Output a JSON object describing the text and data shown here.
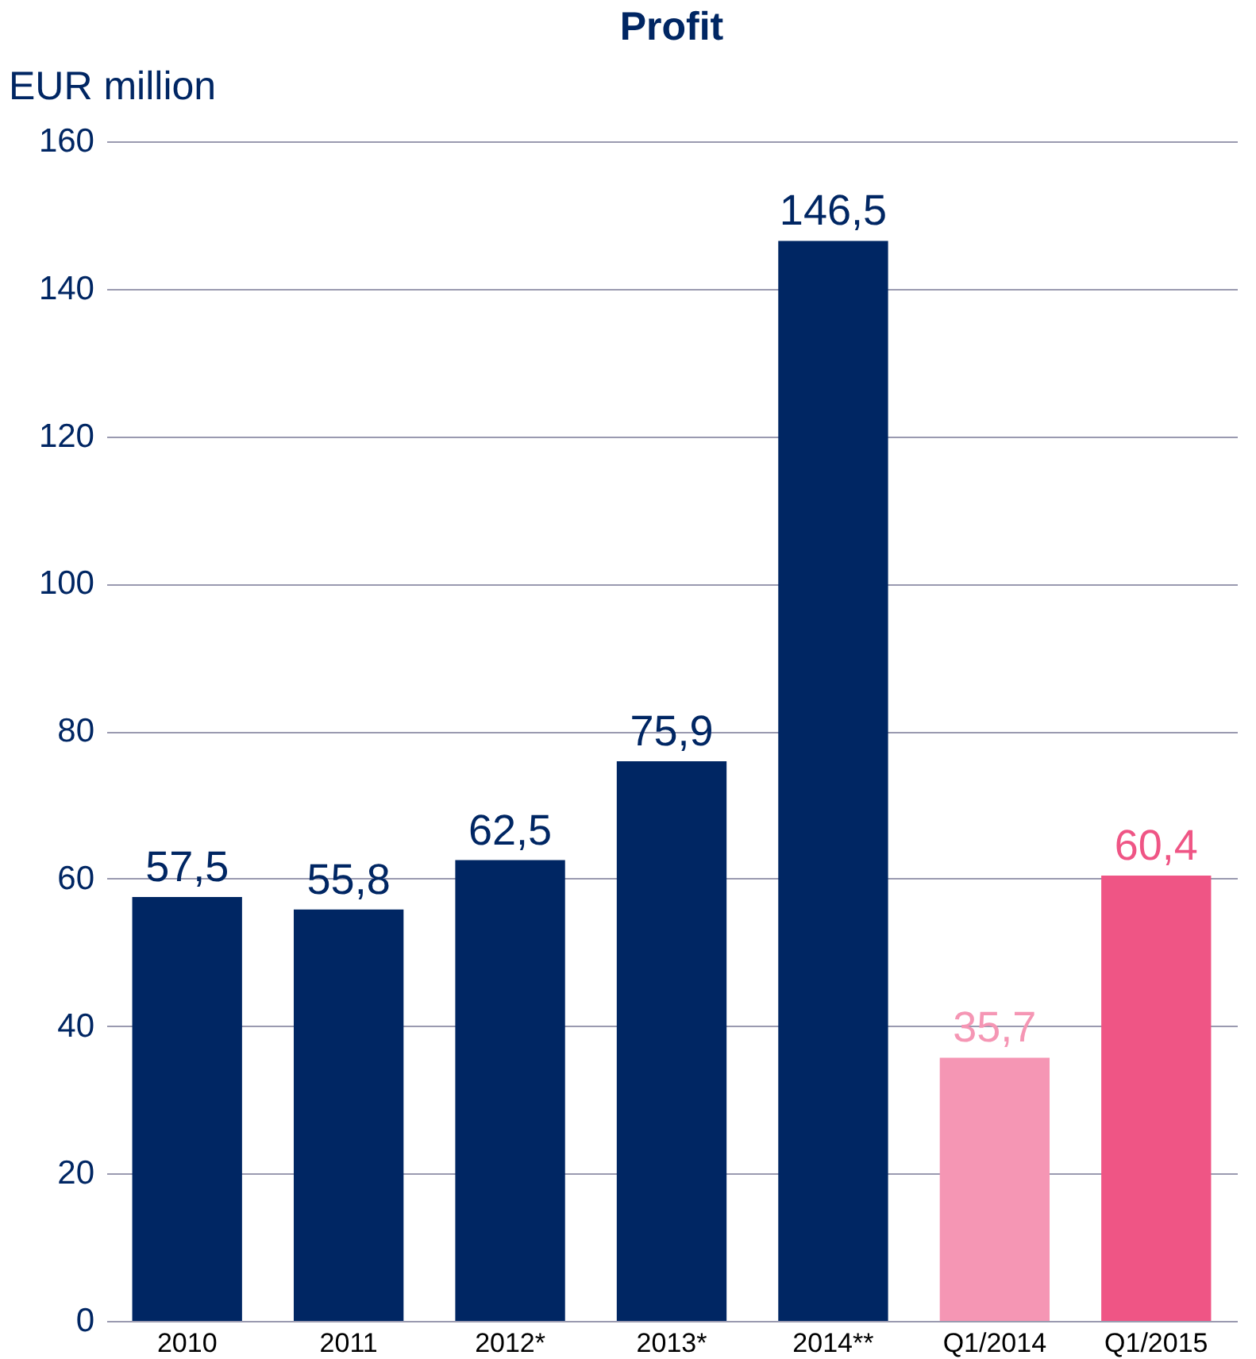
{
  "chart_data": {
    "type": "bar",
    "title": "Profit",
    "ylabel": "EUR million",
    "categories": [
      "2010",
      "2011",
      "2012*",
      "2013*",
      "2014**",
      "Q1/2014",
      "Q1/2015"
    ],
    "values": [
      57.5,
      55.8,
      62.5,
      75.9,
      146.5,
      35.7,
      60.4
    ],
    "value_labels": [
      "57,5",
      "55,8",
      "62,5",
      "75,9",
      "146,5",
      "35,7",
      "60,4"
    ],
    "colors": [
      "#002663",
      "#002663",
      "#002663",
      "#002663",
      "#002663",
      "#f596b4",
      "#ef5585"
    ],
    "ylim": [
      0,
      160
    ],
    "yticks": [
      0,
      20,
      40,
      60,
      80,
      100,
      120,
      140,
      160
    ],
    "grid": "y"
  }
}
